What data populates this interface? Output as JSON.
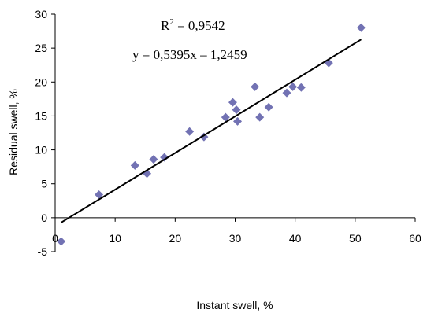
{
  "chart_data": {
    "type": "scatter",
    "xlabel": "Instant swell, %",
    "ylabel": "Residual swell, %",
    "xlim": [
      0,
      60
    ],
    "ylim": [
      -5,
      30
    ],
    "x_ticks": [
      "0",
      "10",
      "20",
      "30",
      "40",
      "50",
      "60"
    ],
    "y_ticks": [
      "-5",
      "0",
      "5",
      "10",
      "15",
      "20",
      "25",
      "30"
    ],
    "grid": false,
    "legend": "none",
    "marker_color": "#7272b3",
    "trendline_color": "#000000",
    "points": [
      {
        "x": 1.0,
        "y": -3.5
      },
      {
        "x": 7.3,
        "y": 3.4
      },
      {
        "x": 13.3,
        "y": 7.7
      },
      {
        "x": 15.3,
        "y": 6.5
      },
      {
        "x": 16.4,
        "y": 8.6
      },
      {
        "x": 18.2,
        "y": 8.9
      },
      {
        "x": 22.4,
        "y": 12.7
      },
      {
        "x": 24.8,
        "y": 11.9
      },
      {
        "x": 28.4,
        "y": 14.8
      },
      {
        "x": 29.6,
        "y": 17.0
      },
      {
        "x": 30.2,
        "y": 15.9
      },
      {
        "x": 30.4,
        "y": 14.2
      },
      {
        "x": 33.3,
        "y": 19.3
      },
      {
        "x": 34.1,
        "y": 14.8
      },
      {
        "x": 35.6,
        "y": 16.3
      },
      {
        "x": 38.6,
        "y": 18.4
      },
      {
        "x": 39.6,
        "y": 19.3
      },
      {
        "x": 41.0,
        "y": 19.2
      },
      {
        "x": 45.6,
        "y": 22.8
      },
      {
        "x": 51.0,
        "y": 28.0
      }
    ],
    "trendline": {
      "slope": 0.5395,
      "intercept": -1.2459,
      "x_range": [
        1,
        51
      ]
    },
    "annotations": {
      "r2_prefix": "R",
      "r2_sup": "2",
      "r2_value": " = 0,9542",
      "equation": "y = 0,5395x – 1,2459"
    }
  }
}
